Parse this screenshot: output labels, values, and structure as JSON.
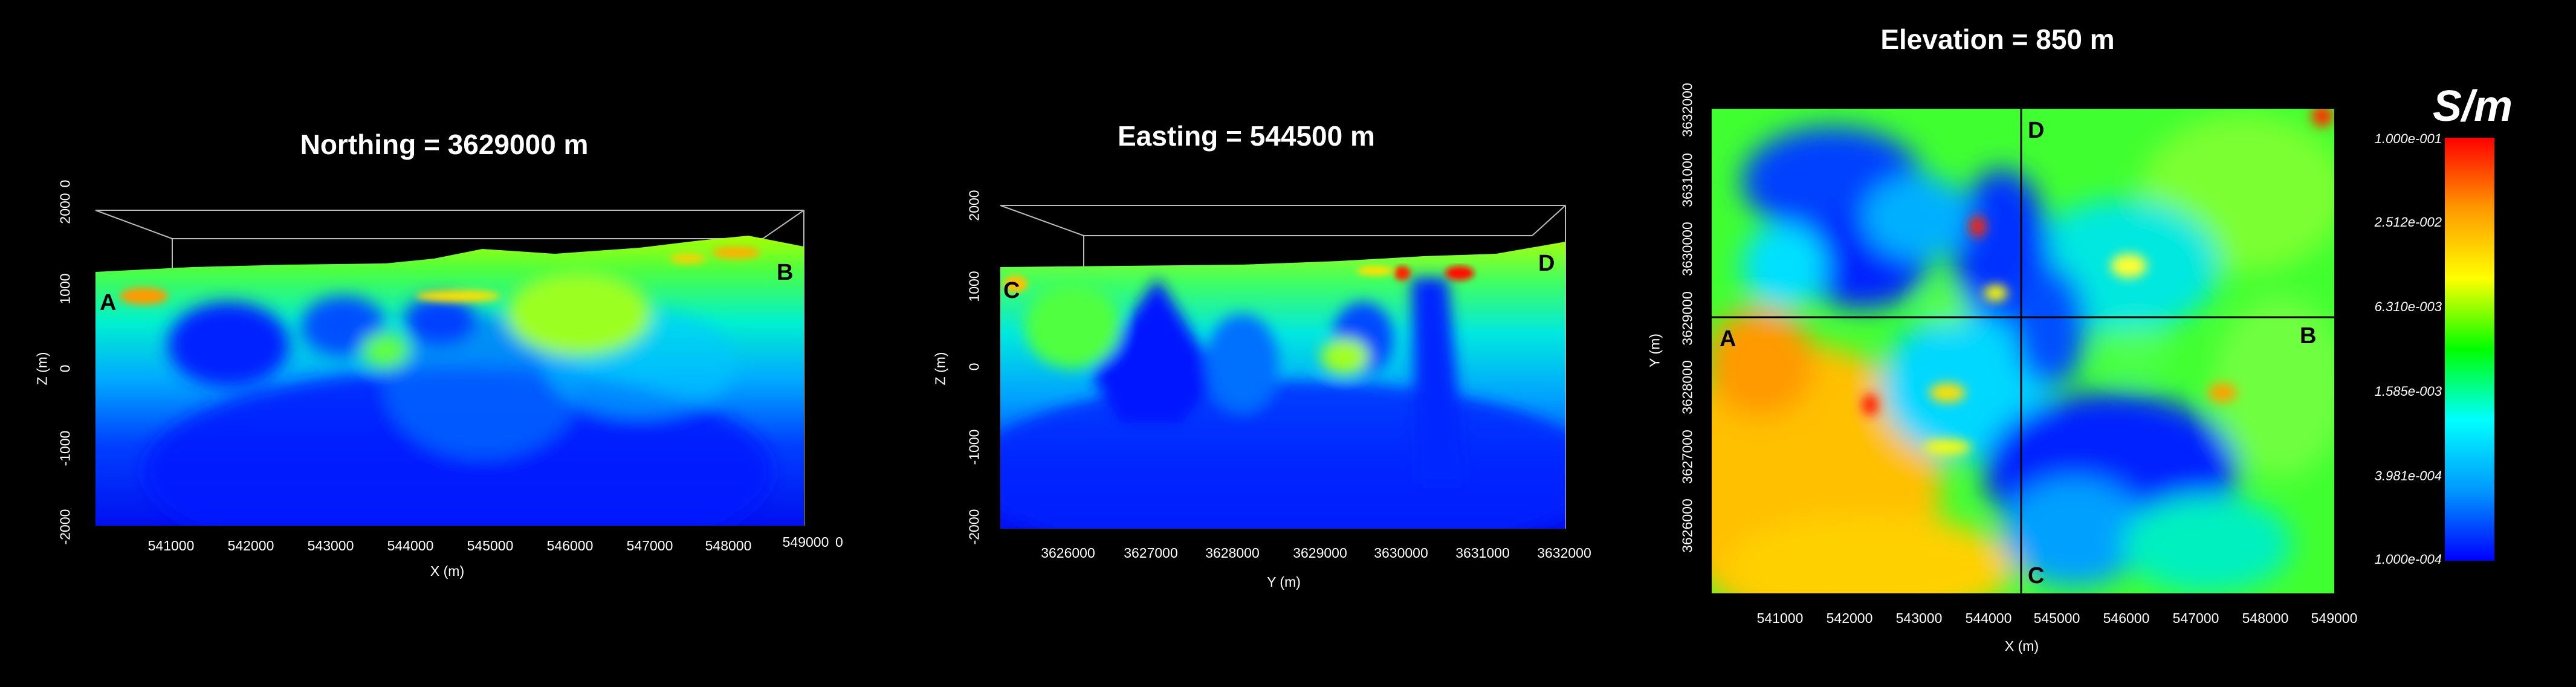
{
  "chart_data": [
    {
      "type": "heatmap",
      "title": "Northing = 3629000 m",
      "xlabel": "X (m)",
      "ylabel": "Z (m)",
      "x_ticks": [
        "541000",
        "542000",
        "543000",
        "544000",
        "545000",
        "546000",
        "547000",
        "548000",
        "549000"
      ],
      "y_ticks": [
        "2000",
        "1000",
        "0",
        "-1000",
        "-2000"
      ],
      "stray_labels": [
        "0",
        "0"
      ],
      "xlim": [
        540100,
        549000
      ],
      "ylim": [
        -2000,
        2000
      ],
      "markers": [
        "A",
        "B"
      ],
      "low_zones": [
        {
          "x": 541700,
          "z": 600
        },
        {
          "x": 544600,
          "z": 800
        }
      ],
      "high_zones": [
        {
          "x": 540700,
          "z": 900
        },
        {
          "x": 545900,
          "z": 1100
        },
        {
          "x": 547800,
          "z": 1500
        }
      ]
    },
    {
      "type": "heatmap",
      "title": "Easting = 544500 m",
      "xlabel": "Y (m)",
      "ylabel": "Z (m)",
      "x_ticks": [
        "3626000",
        "3627000",
        "3628000",
        "3629000",
        "3630000",
        "3631000",
        "3632000"
      ],
      "y_ticks": [
        "2000",
        "1000",
        "0",
        "-1000",
        "-2000"
      ],
      "xlim": [
        3625000,
        3632000
      ],
      "ylim": [
        -2000,
        2000
      ],
      "markers": [
        "C",
        "D"
      ],
      "low_zones": [
        {
          "y": 3627200,
          "z": 400
        },
        {
          "y": 3629000,
          "z": 600
        },
        {
          "y": 3630600,
          "z": 300
        }
      ],
      "high_zones": [
        {
          "y": 3630000,
          "z": 1200
        },
        {
          "y": 3631000,
          "z": 1200
        }
      ]
    },
    {
      "type": "heatmap",
      "title": "Elevation = 850 m",
      "xlabel": "X (m)",
      "ylabel": "Y (m)",
      "x_ticks": [
        "541000",
        "542000",
        "543000",
        "544000",
        "545000",
        "546000",
        "547000",
        "548000",
        "549000"
      ],
      "y_ticks": [
        "3632000",
        "3631000",
        "3630000",
        "3629000",
        "3628000",
        "3627000",
        "3626000"
      ],
      "xlim": [
        540100,
        549000
      ],
      "ylim": [
        3625000,
        3632000
      ],
      "markers": [
        "A",
        "B",
        "C",
        "D"
      ],
      "section_lines": {
        "northing": 3629000,
        "easting": 544500
      }
    }
  ],
  "colorbar": {
    "unit": "S/m",
    "labels": [
      "1.000e-001",
      "2.512e-002",
      "6.310e-003",
      "1.585e-003",
      "3.981e-004",
      "1.000e-004"
    ],
    "colors": [
      "#ff0000",
      "#ff9900",
      "#ffff00",
      "#00ff00",
      "#00ffff",
      "#0099ff",
      "#0000ff"
    ]
  }
}
